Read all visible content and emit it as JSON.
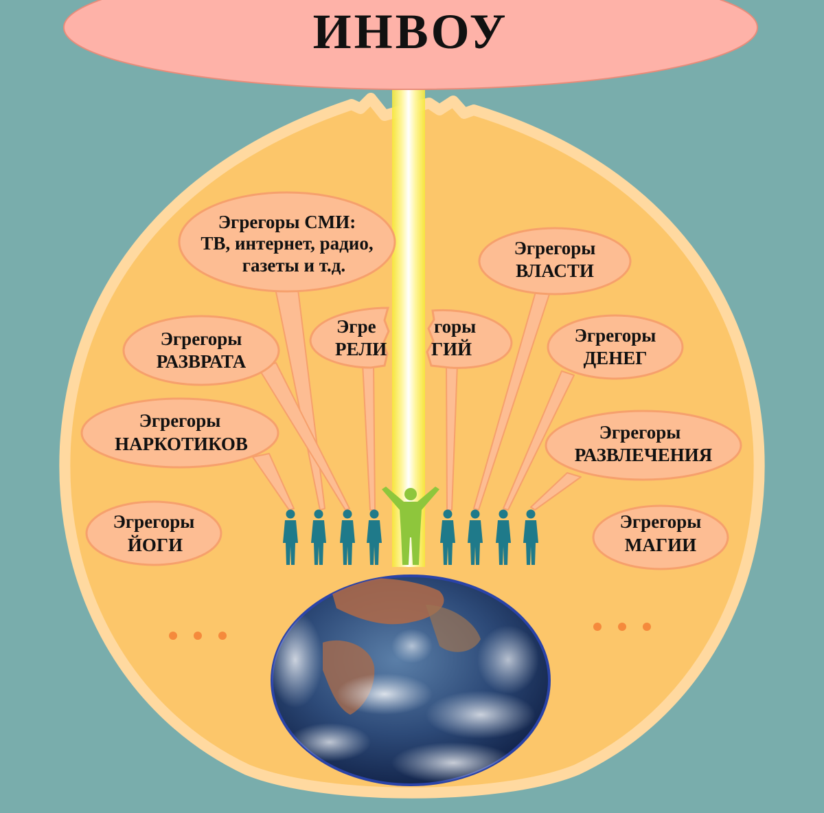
{
  "title": "ИНВОУ",
  "colors": {
    "background": "#79adac",
    "sphere_fill": "#fcc66a",
    "sphere_rim": "#ffd9a0",
    "bubble_fill": "#fdbd93",
    "bubble_stroke": "#f6a06c",
    "cloud_fill": "#feb2a8",
    "human": "#1f7a8a",
    "center_human": "#8ec63c",
    "dots": "#f58a3c"
  },
  "bubbles": {
    "smi": {
      "line1": "Эгрегоры СМИ:",
      "line2": "ТВ, интернет, радио,",
      "line3": "газеты и т.д."
    },
    "razvrat": {
      "line1": "Эгрегоры",
      "line2": "РАЗВРАТА"
    },
    "narkotiki": {
      "line1": "Эгрегоры",
      "line2": "НАРКОТИКОВ"
    },
    "yoga": {
      "line1": "Эгрегоры",
      "line2": "ЙОГИ"
    },
    "religion": {
      "line1": "Эгре",
      "line2": "РЕЛИ"
    },
    "magic_torn": {
      "line1": "горы",
      "line2": "ГИЙ"
    },
    "vlast": {
      "line1": "Эгрегоры",
      "line2": "ВЛАСТИ"
    },
    "dengi": {
      "line1": "Эгрегоры",
      "line2": "ДЕНЕГ"
    },
    "razvlech": {
      "line1": "Эгрегоры",
      "line2": "РАЗВЛЕЧЕНИЯ"
    },
    "magia": {
      "line1": "Эгрегоры",
      "line2": "МАГИИ"
    }
  },
  "icons": {
    "earth": "earth-globe-icon",
    "people": "human-silhouette-icon",
    "center": "raised-arms-human-icon",
    "ellipsis": "ellipsis-dots-icon"
  }
}
